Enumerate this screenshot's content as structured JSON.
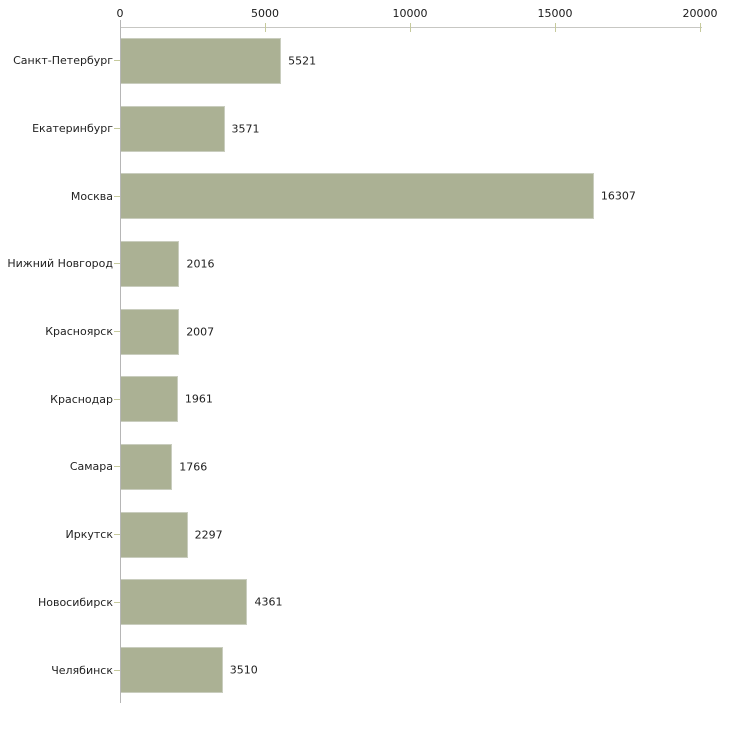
{
  "chart_data": {
    "type": "bar",
    "orientation": "horizontal",
    "title": "",
    "xlabel": "",
    "ylabel": "",
    "categories": [
      "Санкт-Петербург",
      "Екатеринбург",
      "Москва",
      "Нижний Новгород",
      "Красноярск",
      "Краснодар",
      "Самара",
      "Иркутск",
      "Новосибирск",
      "Челябинск"
    ],
    "values": [
      5521,
      3571,
      16307,
      2016,
      2007,
      1961,
      1766,
      2297,
      4361,
      3510
    ],
    "xlim": [
      0,
      20000
    ],
    "x_ticks": [
      0,
      5000,
      10000,
      15000,
      20000
    ],
    "grid": false,
    "legend": false,
    "bar_color": "#abb194",
    "bar_border_color": "#c9cdbe",
    "axis_line_color": "#b6b6b6",
    "tick_color": "#c6ca9d",
    "text_color": "#1f1f1f",
    "background_color": "#ffffff"
  }
}
